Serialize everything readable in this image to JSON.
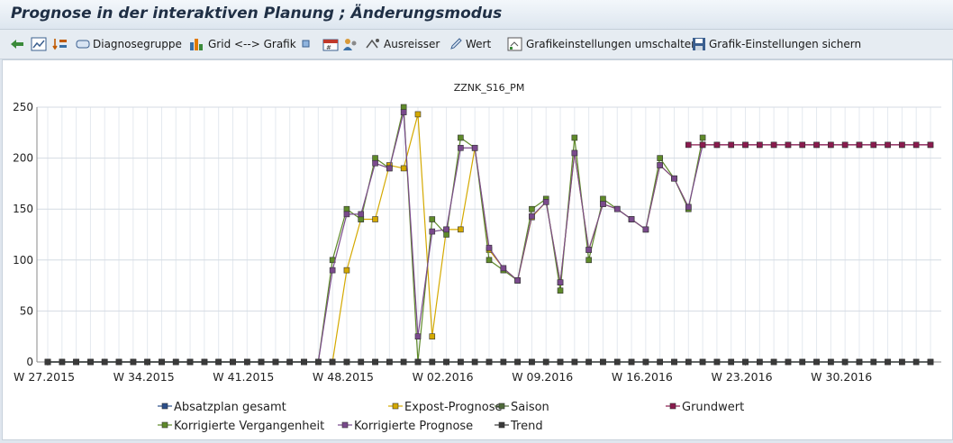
{
  "window": {
    "title": "Prognose in der interaktiven Planung  ; Änderungsmodus"
  },
  "toolbar": {
    "diagnose_label": "Diagnosegruppe",
    "grid_label": "Grid <--> Grafik",
    "ausreisser_label": "Ausreisser",
    "wert_label": "Wert",
    "grafik_umschalten_label": "Grafikeinstellungen umschalten",
    "grafik_sichern_label": "Grafik-Einstellungen sichern"
  },
  "chart_data": {
    "type": "line",
    "title": "ZZNK_S16_PM",
    "ylim": [
      0,
      250
    ],
    "yticks": [
      0,
      50,
      100,
      150,
      200,
      250
    ],
    "grid": true,
    "x_count": 63,
    "x_tick_labels": [
      {
        "index": 0,
        "label": "W 27.2015"
      },
      {
        "index": 7,
        "label": "W 34.2015"
      },
      {
        "index": 14,
        "label": "W 41.2015"
      },
      {
        "index": 21,
        "label": "W 48.2015"
      },
      {
        "index": 28,
        "label": "W 02.2016"
      },
      {
        "index": 35,
        "label": "W 09.2016"
      },
      {
        "index": 42,
        "label": "W 16.2016"
      },
      {
        "index": 49,
        "label": "W 23.2016"
      },
      {
        "index": 56,
        "label": "W 30.2016"
      }
    ],
    "legend_position": "bottom",
    "series": [
      {
        "name": "Absatzplan gesamt",
        "color": "#2b4f8a",
        "values": [
          0,
          0,
          0,
          0,
          0,
          0,
          0,
          0,
          0,
          0,
          0,
          0,
          0,
          0,
          0,
          0,
          0,
          0,
          0,
          0,
          0,
          0,
          0,
          0,
          0,
          0,
          0,
          0,
          0,
          0,
          0,
          0,
          0,
          0,
          0,
          0,
          0,
          0,
          0,
          0,
          0,
          0,
          0,
          0,
          0,
          0,
          0,
          0,
          0,
          0,
          0,
          0,
          0,
          0,
          0,
          0,
          0,
          0,
          0,
          0,
          0,
          0,
          0
        ]
      },
      {
        "name": "Expost-Prognose",
        "color": "#d4a900",
        "values": [
          null,
          null,
          null,
          null,
          null,
          null,
          null,
          null,
          null,
          null,
          null,
          null,
          null,
          null,
          null,
          null,
          null,
          null,
          null,
          null,
          0,
          90,
          140,
          140,
          193,
          190,
          243,
          25,
          130,
          130,
          210,
          110,
          92,
          80,
          142,
          157,
          78,
          205,
          110,
          155,
          150,
          140,
          130,
          193,
          180,
          152,
          null,
          null,
          null,
          null,
          null,
          null,
          null,
          null,
          null,
          null,
          null,
          null,
          null,
          null,
          null,
          null,
          null
        ]
      },
      {
        "name": "Saison",
        "color": "#4f6b3a",
        "values": [
          0,
          0,
          0,
          0,
          0,
          0,
          0,
          0,
          0,
          0,
          0,
          0,
          0,
          0,
          0,
          0,
          0,
          0,
          0,
          0,
          0,
          0,
          0,
          0,
          0,
          0,
          0,
          0,
          0,
          0,
          0,
          0,
          0,
          0,
          0,
          0,
          0,
          0,
          0,
          0,
          0,
          0,
          0,
          0,
          0,
          0,
          0,
          0,
          0,
          0,
          0,
          0,
          0,
          0,
          0,
          0,
          0,
          0,
          0,
          0,
          0,
          0,
          0
        ]
      },
      {
        "name": "Grundwert",
        "color": "#8a1a4e",
        "values": [
          null,
          null,
          null,
          null,
          null,
          null,
          null,
          null,
          null,
          null,
          null,
          null,
          null,
          null,
          null,
          null,
          null,
          null,
          null,
          null,
          null,
          null,
          null,
          null,
          null,
          null,
          null,
          null,
          null,
          null,
          null,
          null,
          null,
          null,
          null,
          null,
          null,
          null,
          null,
          null,
          null,
          null,
          null,
          null,
          null,
          213,
          213,
          213,
          213,
          213,
          213,
          213,
          213,
          213,
          213,
          213,
          213,
          213,
          213,
          213,
          213,
          213,
          213
        ]
      },
      {
        "name": "Korrigierte Vergangenheit",
        "color": "#5f8a2a",
        "values": [
          0,
          0,
          0,
          0,
          0,
          0,
          0,
          0,
          0,
          0,
          0,
          0,
          0,
          0,
          0,
          0,
          0,
          0,
          0,
          0,
          100,
          150,
          140,
          200,
          190,
          250,
          0,
          140,
          125,
          220,
          210,
          100,
          90,
          80,
          150,
          160,
          70,
          220,
          100,
          160,
          150,
          140,
          130,
          200,
          180,
          150,
          220,
          null,
          null,
          null,
          null,
          null,
          null,
          null,
          null,
          null,
          null,
          null,
          null,
          null,
          null,
          null,
          null
        ]
      },
      {
        "name": "Korrigierte Prognose",
        "color": "#7a4a8c",
        "values": [
          0,
          0,
          0,
          0,
          0,
          0,
          0,
          0,
          0,
          0,
          0,
          0,
          0,
          0,
          0,
          0,
          0,
          0,
          0,
          0,
          90,
          145,
          145,
          195,
          190,
          245,
          25,
          128,
          130,
          210,
          210,
          112,
          92,
          80,
          143,
          157,
          78,
          205,
          110,
          155,
          150,
          140,
          130,
          193,
          180,
          152,
          213,
          213,
          213,
          213,
          213,
          213,
          213,
          213,
          213,
          213,
          213,
          213,
          213,
          213,
          213,
          213,
          213
        ]
      },
      {
        "name": "Trend",
        "color": "#3a3a3a",
        "values": [
          0,
          0,
          0,
          0,
          0,
          0,
          0,
          0,
          0,
          0,
          0,
          0,
          0,
          0,
          0,
          0,
          0,
          0,
          0,
          0,
          0,
          0,
          0,
          0,
          0,
          0,
          0,
          0,
          0,
          0,
          0,
          0,
          0,
          0,
          0,
          0,
          0,
          0,
          0,
          0,
          0,
          0,
          0,
          0,
          0,
          0,
          0,
          0,
          0,
          0,
          0,
          0,
          0,
          0,
          0,
          0,
          0,
          0,
          0,
          0,
          0,
          0,
          0
        ]
      }
    ]
  }
}
